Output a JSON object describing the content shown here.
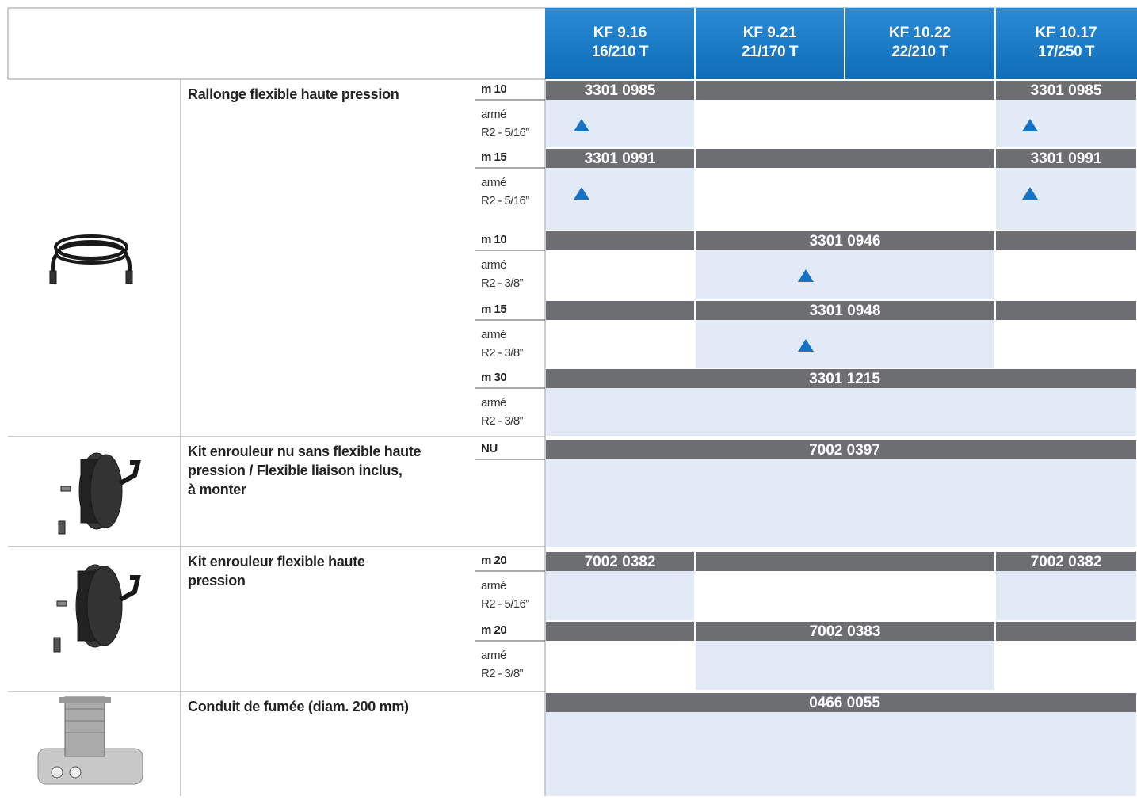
{
  "header": {
    "models": [
      {
        "name": "KF 9.16",
        "rating": "16/210 T"
      },
      {
        "name": "KF 9.21",
        "rating": "21/170 T"
      },
      {
        "name": "KF 10.22",
        "rating": "22/210 T"
      },
      {
        "name": "KF 10.17",
        "rating": "17/250 T"
      }
    ]
  },
  "sections": [
    {
      "description": [
        "Rallonge flexible haute pression"
      ],
      "rows": [
        {
          "label": "m 10",
          "codes": [
            "3301 0985",
            "3301 0985"
          ],
          "detail": [
            "armé",
            "R2 - 5/16”"
          ]
        },
        {
          "label": "m 15",
          "codes": [
            "3301 0991",
            "3301 0991"
          ],
          "detail": [
            "armé",
            "R2 - 5/16”"
          ]
        },
        {
          "label": "m 10",
          "codes": [
            "3301 0946"
          ],
          "detail": [
            "armé",
            "R2 - 3/8”"
          ]
        },
        {
          "label": "m 15",
          "codes": [
            "3301 0948"
          ],
          "detail": [
            "armé",
            "R2 - 3/8”"
          ]
        },
        {
          "label": "m 30",
          "codes": [
            "3301 1215"
          ],
          "detail": [
            "armé",
            "R2 - 3/8”"
          ]
        }
      ]
    },
    {
      "description": [
        "Kit enrouleur nu sans flexible haute",
        "pression / Flexible liaison inclus,",
        "à monter"
      ],
      "rows": [
        {
          "label": "NU",
          "codes": [
            "7002 0397"
          ]
        }
      ]
    },
    {
      "description": [
        "Kit enrouleur flexible haute",
        "pression"
      ],
      "rows": [
        {
          "label": "m 20",
          "codes": [
            "7002 0382",
            "7002 0382"
          ],
          "detail": [
            "armé",
            "R2 - 5/16”"
          ]
        },
        {
          "label": "m 20",
          "codes": [
            "7002 0383"
          ],
          "detail": [
            "armé",
            "R2 - 3/8”"
          ]
        }
      ]
    },
    {
      "description": [
        "Conduit de fumée (diam. 200 mm)"
      ],
      "rows": [
        {
          "codes": [
            "0466 0055"
          ]
        }
      ]
    }
  ]
}
